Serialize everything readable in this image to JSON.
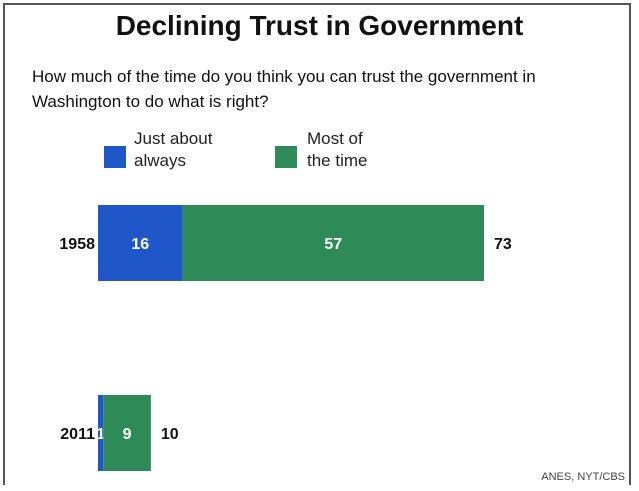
{
  "chart_data": {
    "type": "bar",
    "stacked": true,
    "orientation": "horizontal",
    "title": "Declining Trust in Government",
    "subtitle": "How much of the time do you think you can trust  the government in Washington to do what is right?",
    "categories": [
      "1958",
      "2011"
    ],
    "series": [
      {
        "name": "Just about always",
        "values": [
          16,
          1
        ],
        "color": "#1f56c8"
      },
      {
        "name": "Most of the time",
        "values": [
          57,
          9
        ],
        "color": "#2e8b57"
      }
    ],
    "totals": [
      73,
      10
    ],
    "legend_position": "top",
    "source": "ANES, NYT/CBS",
    "xlim": [
      0,
      73
    ]
  },
  "legend": {
    "always_line1": "Just about",
    "always_line2": "always",
    "most_line1": "Most of",
    "most_line2": "the time"
  }
}
